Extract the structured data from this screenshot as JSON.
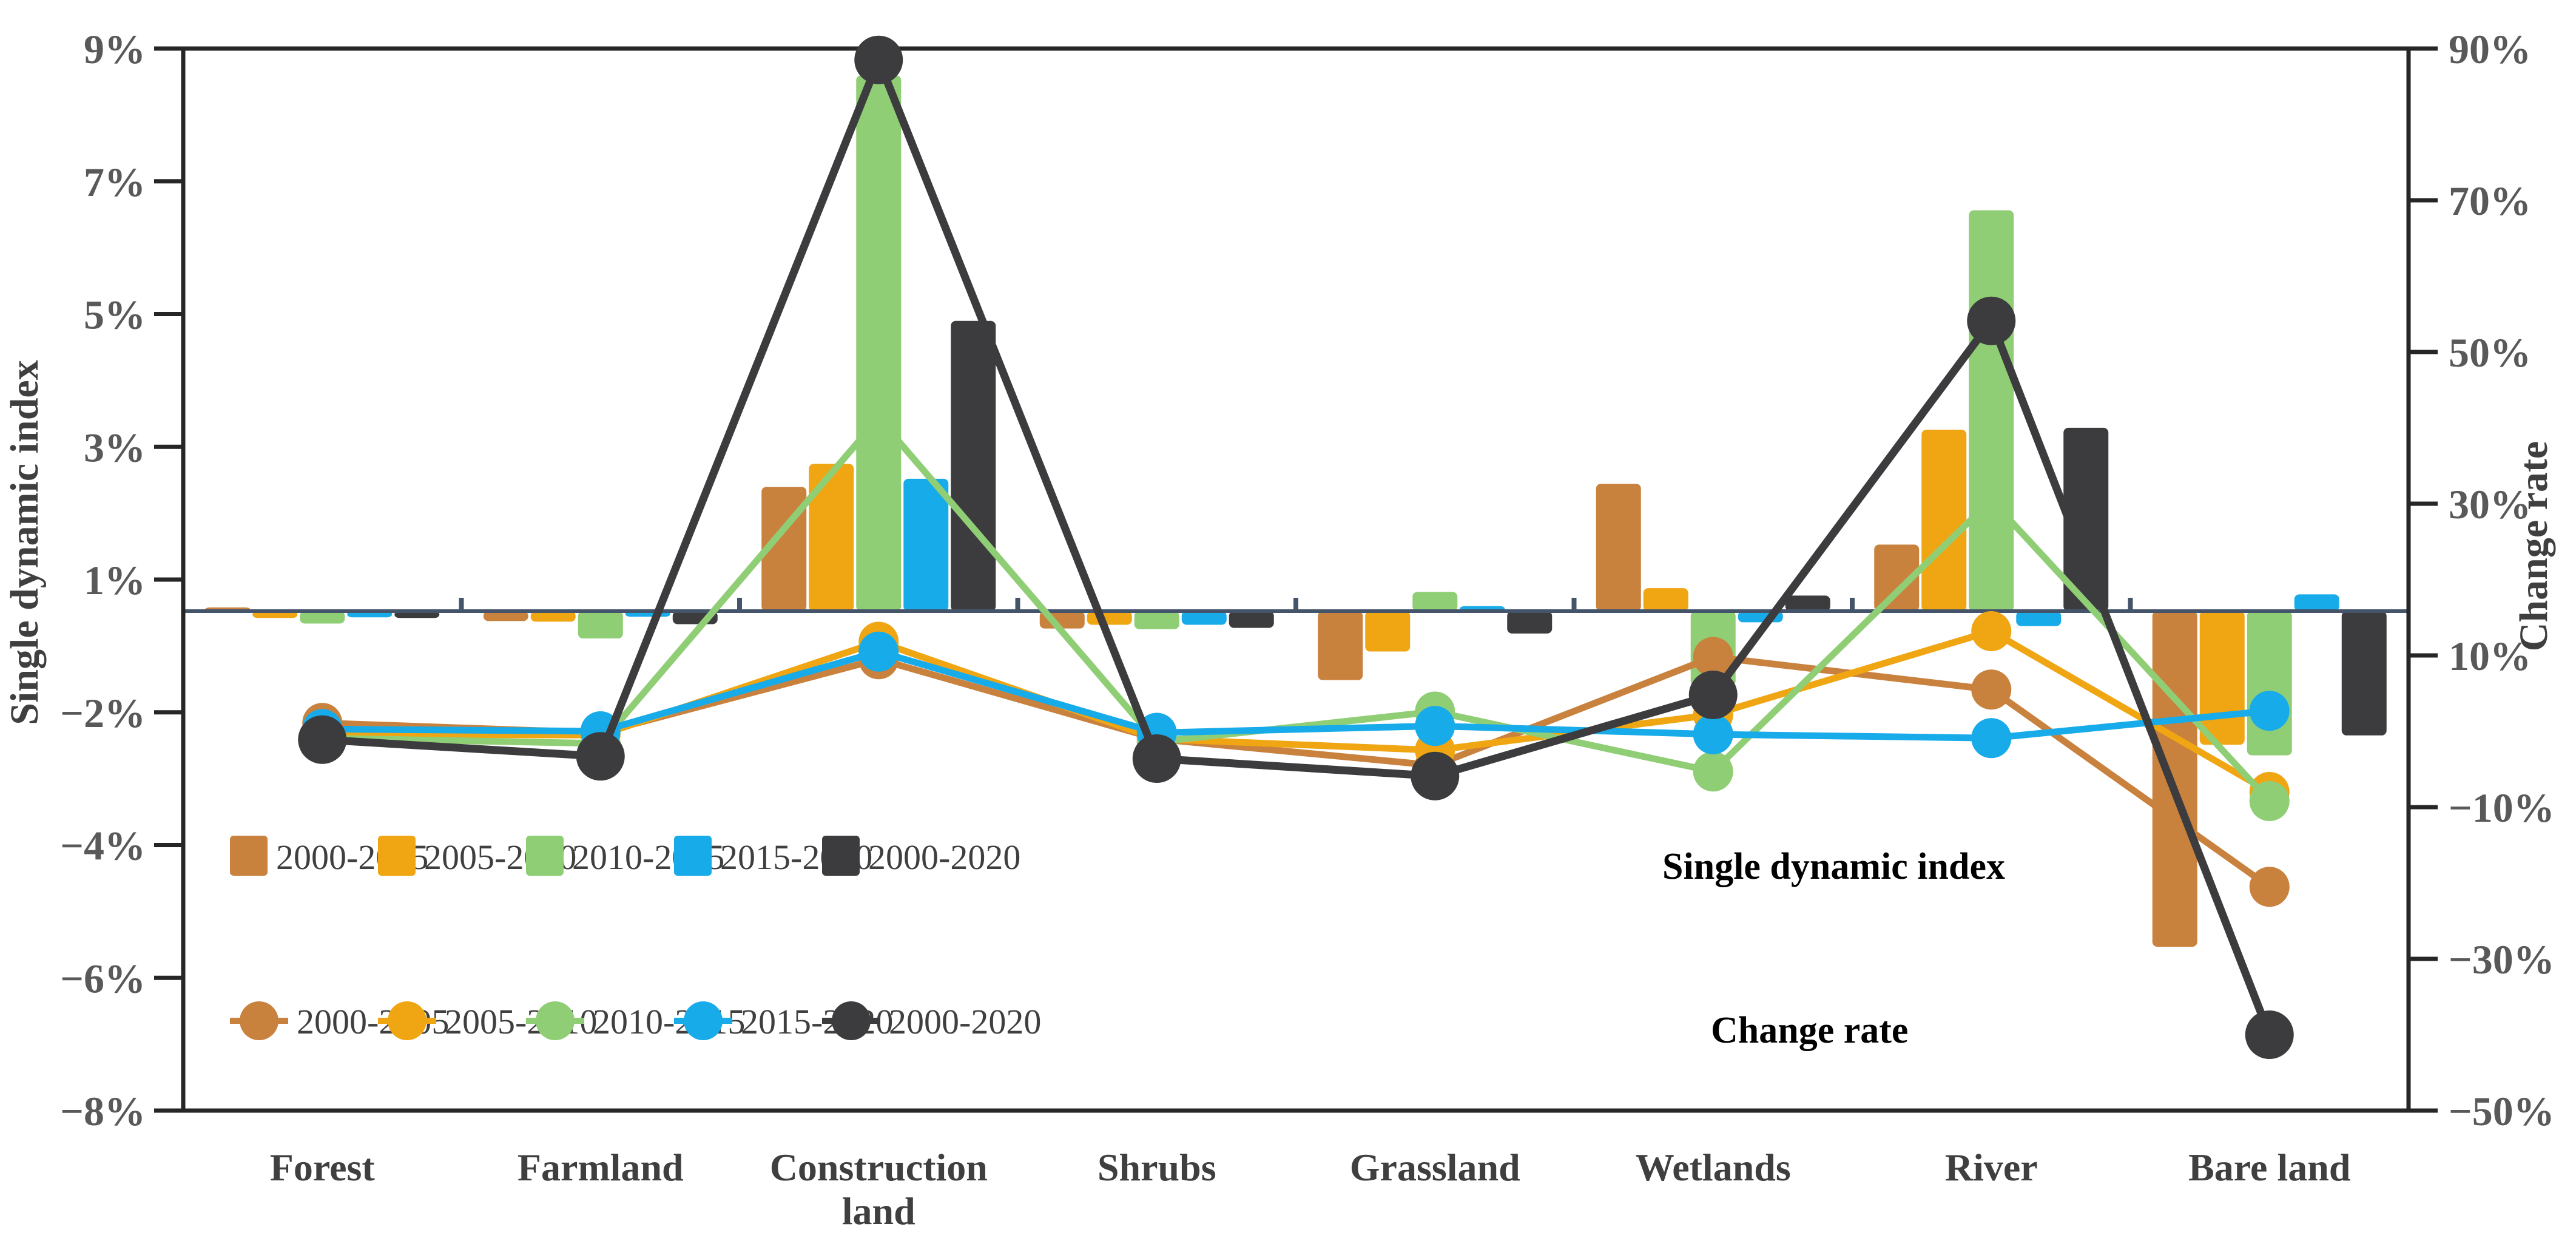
{
  "chart_data": {
    "type": "bar",
    "subtype": "dual-axis-bar-line-combo",
    "categories": [
      "Forest",
      "Farmland",
      "Construction land",
      "Shrubs",
      "Grassland",
      "Wetlands",
      "River",
      "Bare land"
    ],
    "left_axis": {
      "title": "Single dynamic index",
      "tick_labels": [
        "9%",
        "7%",
        "5%",
        "3%",
        "1%",
        "−2%",
        "−4%",
        "−6%",
        "−8%"
      ],
      "zero_at": 0,
      "unit": "%"
    },
    "right_axis": {
      "title": "Change rate",
      "tick_labels": [
        "90%",
        "70%",
        "50%",
        "30%",
        "10%",
        "−10%",
        "−30%",
        "−50%"
      ],
      "range": [
        -50,
        90
      ],
      "unit": "%"
    },
    "bar_series": [
      {
        "name": "2000-2005",
        "color": "#C9813E",
        "values": [
          0.06,
          -0.16,
          2.0,
          -0.28,
          -1.11,
          2.05,
          1.07,
          -5.4
        ]
      },
      {
        "name": "2005-2010",
        "color": "#F0A512",
        "values": [
          -0.11,
          -0.17,
          2.37,
          -0.22,
          -0.65,
          0.37,
          2.92,
          -2.15
        ]
      },
      {
        "name": "2010-2015",
        "color": "#90CE75",
        "values": [
          -0.2,
          -0.44,
          8.62,
          -0.29,
          0.31,
          -1.2,
          6.45,
          -2.32
        ]
      },
      {
        "name": "2015-2020",
        "color": "#18ABE9",
        "values": [
          -0.1,
          -0.09,
          2.13,
          -0.22,
          0.08,
          -0.18,
          -0.24,
          0.27
        ]
      },
      {
        "name": "2000-2020",
        "color": "#3C3C3E",
        "values": [
          -0.11,
          -0.21,
          4.67,
          -0.27,
          -0.36,
          0.25,
          2.95,
          -2.0
        ]
      }
    ],
    "line_series": [
      {
        "name": "2000-2005",
        "color": "#C9813E",
        "values": [
          1.1,
          -0.2,
          9.5,
          -1.0,
          -4.5,
          9.8,
          5.5,
          -20.5
        ]
      },
      {
        "name": "2005-2010",
        "color": "#F0A512",
        "values": [
          -0.4,
          -0.5,
          11.8,
          -1.0,
          -2.5,
          2.2,
          13.2,
          -8.0
        ]
      },
      {
        "name": "2010-2015",
        "color": "#90CE75",
        "values": [
          -0.9,
          -1.6,
          41.3,
          -1.4,
          2.6,
          -5.3,
          30.5,
          -9.2
        ]
      },
      {
        "name": "2015-2020",
        "color": "#18ABE9",
        "values": [
          0.3,
          0.0,
          10.5,
          -0.2,
          0.7,
          -0.4,
          -0.9,
          2.7
        ]
      },
      {
        "name": "2000-2020",
        "color": "#3C3C3E",
        "values": [
          -1.1,
          -3.3,
          88.5,
          -3.6,
          -5.9,
          4.8,
          54.1,
          -40.0
        ]
      }
    ],
    "legend": {
      "bar_group_title": "Single dynamic index",
      "line_group_title": "Change rate",
      "bar_items": [
        "2000-2005",
        "2005-2010",
        "2010-2015",
        "2015-2020",
        "2000-2020"
      ],
      "line_items": [
        "2000-2005",
        "2005-2010",
        "2010-2015",
        "2015-2020",
        "2000-2020"
      ]
    },
    "colors": {
      "zero_axis": "#44546A",
      "plot_border": "#262626",
      "tick_label": "#595959",
      "category_label": "#3F3F3F",
      "background": "#FFFFFF"
    },
    "layout_hints": {
      "grid": "off",
      "legend_position": "inside-lower-left, two rows"
    }
  }
}
